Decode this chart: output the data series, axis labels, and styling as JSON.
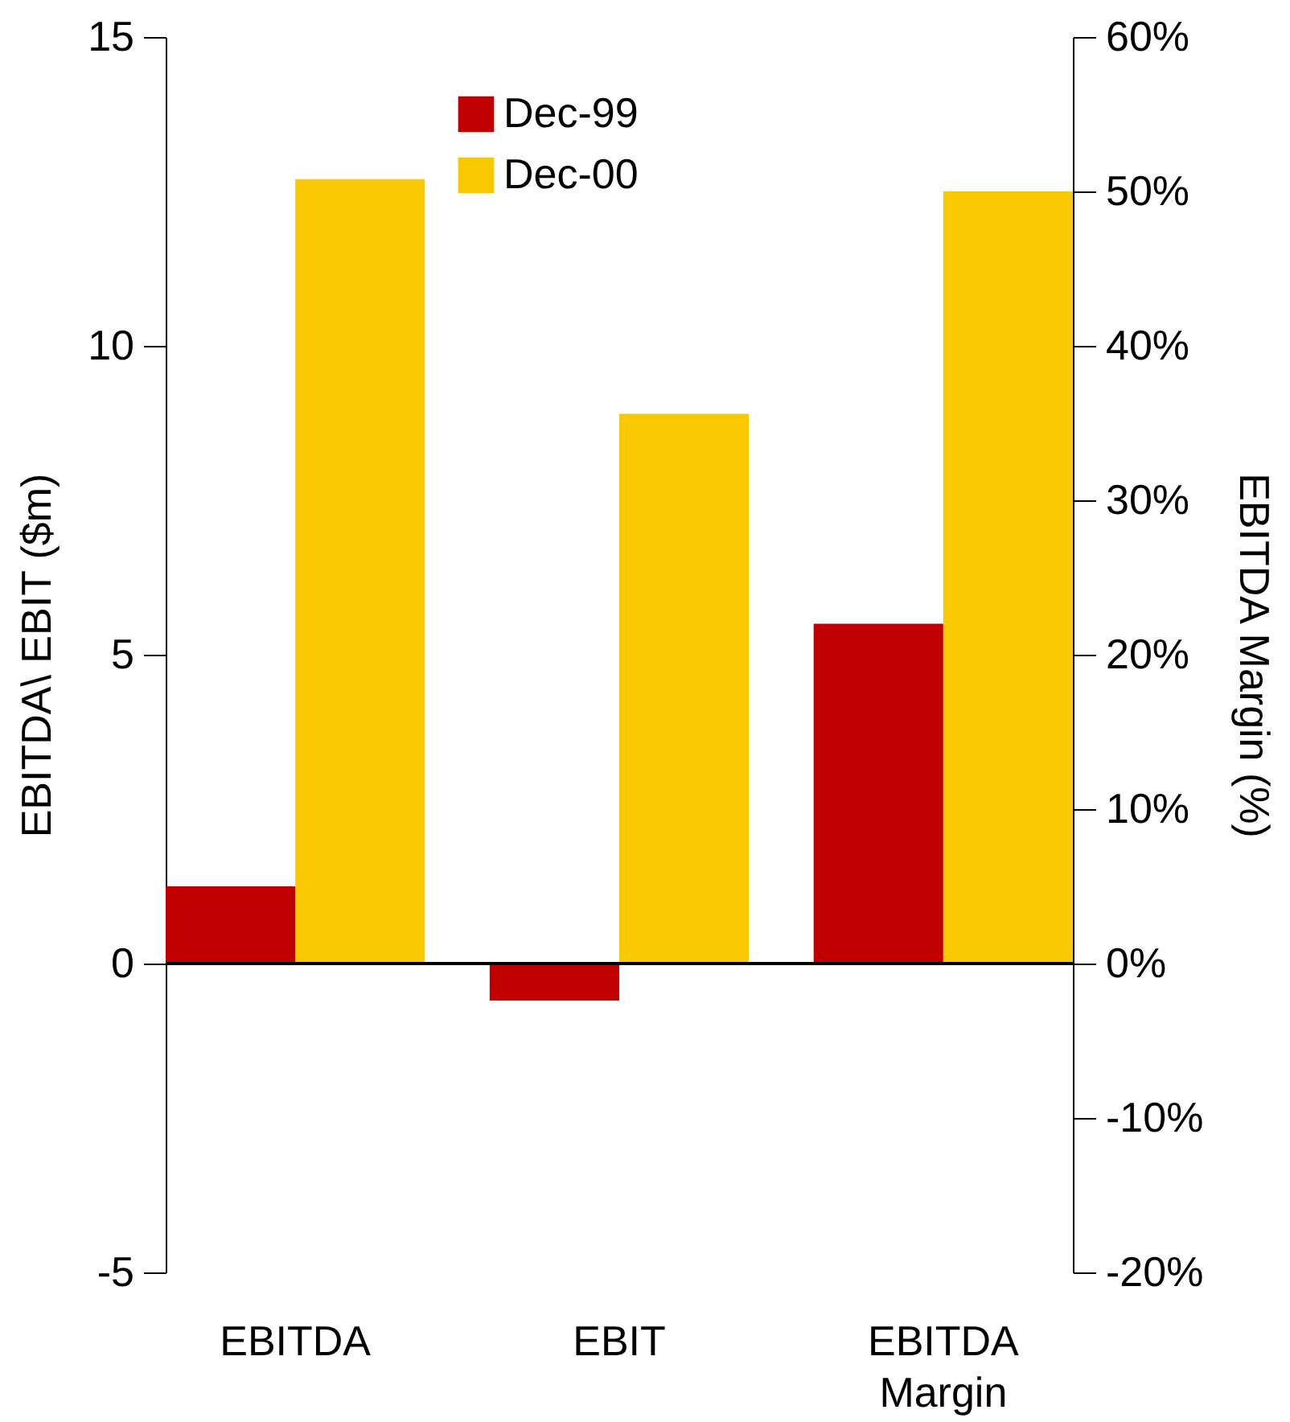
{
  "chart_data": {
    "type": "bar",
    "categories": [
      "EBITDA",
      "EBIT",
      "EBITDA Margin"
    ],
    "ylabel": "EBITDA\\ EBIT ($m)",
    "y2label": "EBITDA Margin (%)",
    "series": [
      {
        "name": "Dec-99",
        "color": "#c00000",
        "values": [
          1.25,
          -0.6,
          null
        ]
      },
      {
        "name": "Dec-00",
        "color": "#f8c800",
        "values": [
          12.7,
          8.9,
          null
        ]
      },
      {
        "color": "#c00000",
        "values": [
          null,
          null,
          22
        ],
        "axis": "y2"
      },
      {
        "color": "#f8c800",
        "values": [
          null,
          null,
          50
        ],
        "axis": "y2"
      }
    ],
    "ylim": [
      -5,
      15
    ],
    "yticks": [
      -5,
      0,
      5,
      10,
      15
    ],
    "y2lim": [
      -20,
      60
    ],
    "y2ticks": [
      {
        "value": -20,
        "label": "-20%"
      },
      {
        "value": -10,
        "label": "-10%"
      },
      {
        "value": 0,
        "label": "0%"
      },
      {
        "value": 10,
        "label": "10%"
      },
      {
        "value": 20,
        "label": "20%"
      },
      {
        "value": 30,
        "label": "30%"
      },
      {
        "value": 40,
        "label": "40%"
      },
      {
        "value": 50,
        "label": "50%"
      },
      {
        "value": 60,
        "label": "60%"
      }
    ],
    "ref_lines": [
      {
        "axis": "y",
        "value": 0,
        "color": "#000000"
      }
    ],
    "grid": false,
    "legend": "top"
  }
}
